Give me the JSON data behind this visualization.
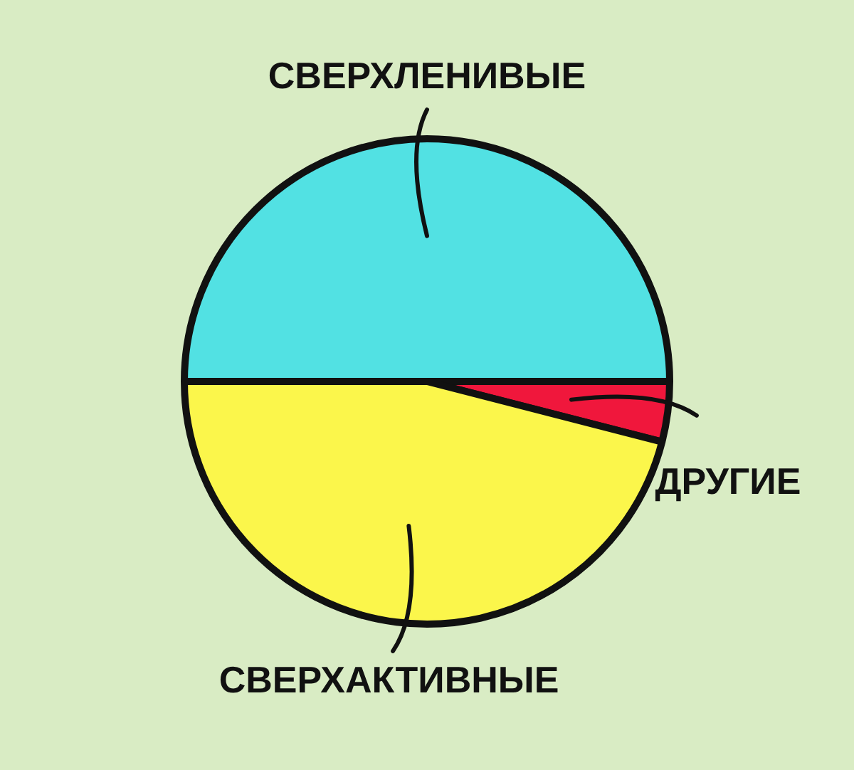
{
  "chart_data": {
    "type": "pie",
    "categories": [
      "СВЕРХЛЕНИВЫЕ",
      "ДРУГИЕ",
      "СВЕРХАКТИВНЫЕ"
    ],
    "values": [
      50,
      4,
      46
    ],
    "colors": [
      "#52e1e3",
      "#f0173c",
      "#fbf64b"
    ],
    "legend": false
  }
}
